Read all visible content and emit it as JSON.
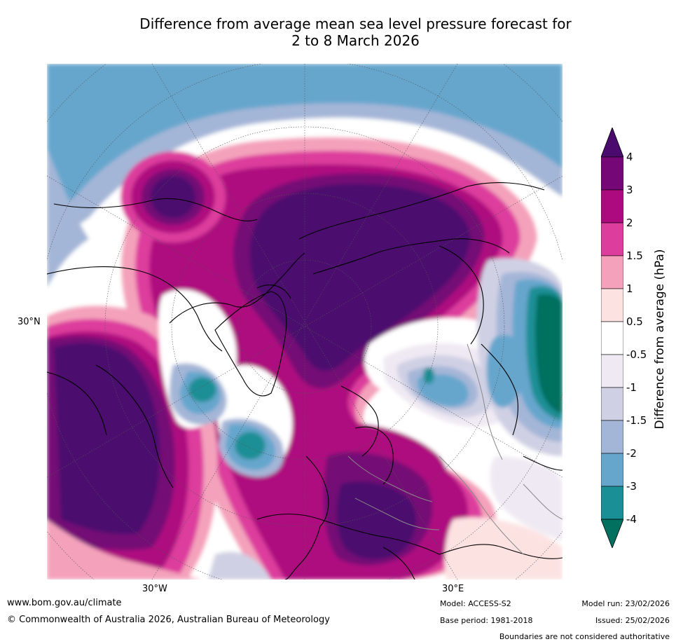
{
  "title_line1": "Difference from average mean sea level pressure forecast for",
  "title_line2": "2 to 8 March 2026",
  "map_labels": {
    "lat_30n": "30°N",
    "lon_30w": "30°W",
    "lon_30e": "30°E"
  },
  "colorbar": {
    "label": "Difference from average (hPa)",
    "ticks": [
      "4",
      "3",
      "2",
      "1.5",
      "1",
      "0.5",
      "-0.5",
      "-1",
      "-1.5",
      "-2",
      "-3",
      "-4"
    ],
    "colors": {
      "gt_4": "#4b0a6e",
      "3_to_4": "#750776",
      "2_to_3": "#ae0a7f",
      "1.5_to_2": "#dd3d9d",
      "1_to_1.5": "#f4a2bc",
      "0.5_to_1": "#fde2e2",
      "neutral": "#ffffff",
      "-1_to_-0.5": "#efe9f3",
      "-1.5_to_-1": "#d0d0e4",
      "-2_to_-1.5": "#a4b6d7",
      "-3_to_-2": "#66a6cd",
      "-4_to_-3": "#1b8f96",
      "lt_-4": "#02705e"
    }
  },
  "footer": {
    "url": "www.bom.gov.au/climate",
    "copyright": "© Commonwealth of Australia 2026, Australian Bureau of Meteorology",
    "model": "Model: ACCESS-S2",
    "base_period": "Base period: 1981-2018",
    "model_run": "Model run: 23/02/2026",
    "issued": "Issued: 25/02/2026",
    "disclaimer": "Boundaries are not considered authoritative"
  }
}
